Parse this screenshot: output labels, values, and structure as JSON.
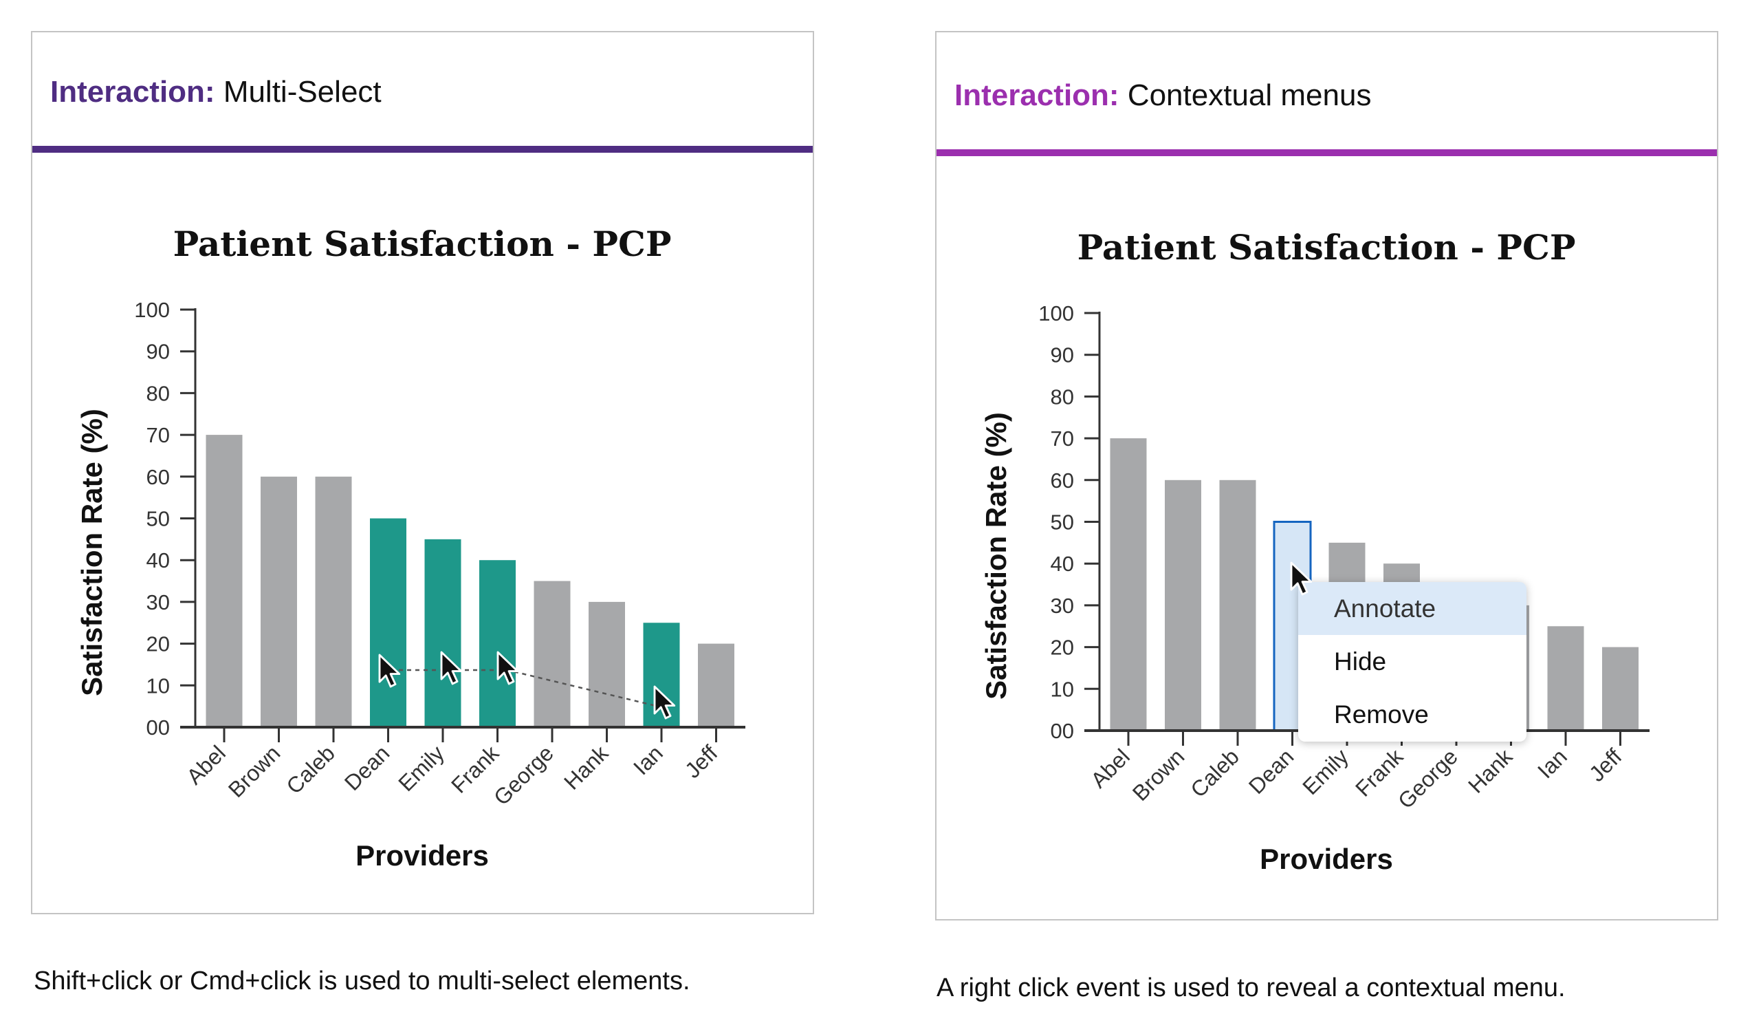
{
  "panels": [
    {
      "header_label": "Interaction:",
      "header_value": "Multi-Select",
      "accent": "#4f2d82",
      "caption": "Shift+click or Cmd+click is used to multi-select elements."
    },
    {
      "header_label": "Interaction:",
      "header_value": "Contextual menus",
      "accent": "#9b2fae",
      "caption": "A right click event is used to reveal a contextual menu.",
      "context_menu": {
        "items": [
          "Annotate",
          "Hide",
          "Remove"
        ],
        "highlighted": "Annotate"
      }
    }
  ],
  "colors": {
    "bar": "#a7a8aa",
    "selected": "#1e988a",
    "hover_fill": "#d6e6f6",
    "hover_stroke": "#1565c0"
  },
  "chart_data": [
    {
      "type": "bar",
      "title": "Patient Satisfaction - PCP",
      "xlabel": "Providers",
      "ylabel": "Satisfaction Rate (%)",
      "categories": [
        "Abel",
        "Brown",
        "Caleb",
        "Dean",
        "Emily",
        "Frank",
        "George",
        "Hank",
        "Ian",
        "Jeff"
      ],
      "values": [
        70,
        60,
        60,
        50,
        45,
        40,
        35,
        30,
        25,
        20
      ],
      "ylim": [
        0,
        100
      ],
      "yticks": [
        "00",
        "10",
        "20",
        "30",
        "40",
        "50",
        "60",
        "70",
        "80",
        "90",
        "100"
      ],
      "selected": [
        "Dean",
        "Emily",
        "Frank",
        "Ian"
      ],
      "grid": false
    },
    {
      "type": "bar",
      "title": "Patient Satisfaction - PCP",
      "xlabel": "Providers",
      "ylabel": "Satisfaction Rate (%)",
      "categories": [
        "Abel",
        "Brown",
        "Caleb",
        "Dean",
        "Emily",
        "Frank",
        "George",
        "Hank",
        "Ian",
        "Jeff"
      ],
      "values": [
        70,
        60,
        60,
        50,
        45,
        40,
        35,
        30,
        25,
        20
      ],
      "ylim": [
        0,
        100
      ],
      "yticks": [
        "00",
        "10",
        "20",
        "30",
        "40",
        "50",
        "60",
        "70",
        "80",
        "90",
        "100"
      ],
      "hovered": "Dean",
      "grid": false
    }
  ]
}
